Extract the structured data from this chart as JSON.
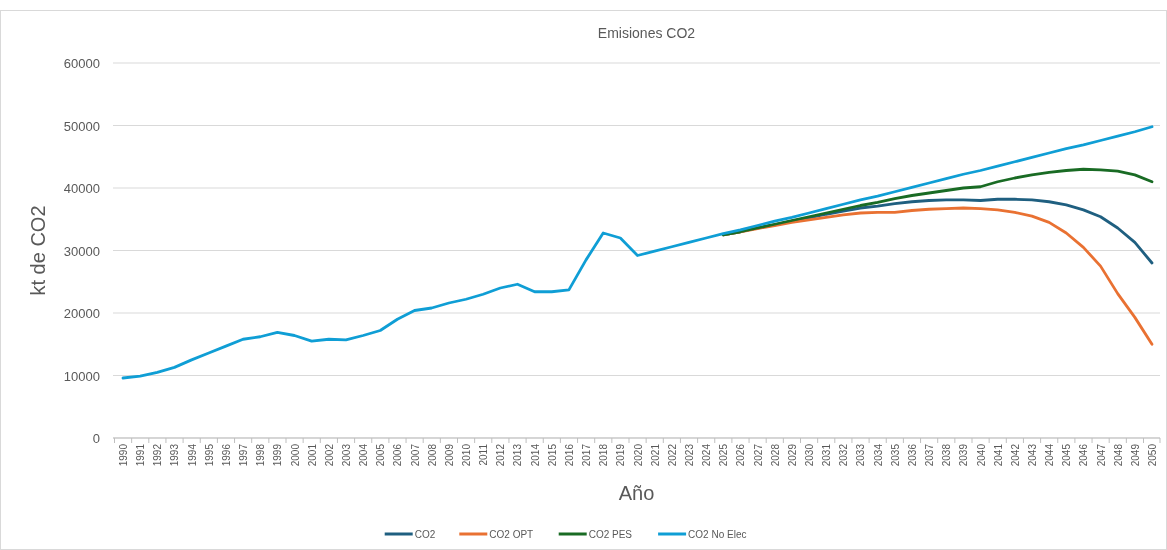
{
  "chart_data": {
    "type": "line",
    "title": "Emisiones CO2",
    "xlabel": "Año",
    "ylabel": "kt de CO2",
    "categories": [
      "1990",
      "1991",
      "1992",
      "1993",
      "1994",
      "1995",
      "1996",
      "1997",
      "1998",
      "1999",
      "2000",
      "2001",
      "2002",
      "2003",
      "2004",
      "2005",
      "2006",
      "2007",
      "2008",
      "2009",
      "2010",
      "2011",
      "2012",
      "2013",
      "2014",
      "2015",
      "2016",
      "2017",
      "2018",
      "2019",
      "2020",
      "2021",
      "2022",
      "2023",
      "2024",
      "2025",
      "2026",
      "2027",
      "2028",
      "2029",
      "2030",
      "2031",
      "2032",
      "2033",
      "2034",
      "2035",
      "2036",
      "2037",
      "2038",
      "2039",
      "2040",
      "2041",
      "2042",
      "2043",
      "2044",
      "2045",
      "2046",
      "2047",
      "2048",
      "2049",
      "2050"
    ],
    "series": [
      {
        "name": "CO2",
        "color": "#1f5f80",
        "values": [
          null,
          null,
          null,
          null,
          null,
          null,
          null,
          null,
          null,
          null,
          null,
          null,
          null,
          null,
          null,
          null,
          null,
          null,
          null,
          null,
          null,
          null,
          null,
          null,
          null,
          null,
          null,
          null,
          null,
          null,
          null,
          null,
          null,
          null,
          null,
          32500,
          33000,
          33600,
          34100,
          34700,
          35200,
          35800,
          36300,
          36800,
          37100,
          37500,
          37800,
          38000,
          38100,
          38100,
          38000,
          38200,
          38200,
          38100,
          37800,
          37300,
          36500,
          35400,
          33600,
          31300,
          28000
        ]
      },
      {
        "name": "CO2 OPT",
        "color": "#e97132",
        "values": [
          null,
          null,
          null,
          null,
          null,
          null,
          null,
          null,
          null,
          null,
          null,
          null,
          null,
          null,
          null,
          null,
          null,
          null,
          null,
          null,
          null,
          null,
          null,
          null,
          null,
          null,
          null,
          null,
          null,
          null,
          null,
          null,
          null,
          null,
          null,
          32500,
          33000,
          33500,
          34000,
          34500,
          34900,
          35300,
          35700,
          36000,
          36100,
          36100,
          36400,
          36600,
          36700,
          36800,
          36700,
          36500,
          36100,
          35500,
          34500,
          32800,
          30500,
          27500,
          23100,
          19300,
          15000
        ]
      },
      {
        "name": "CO2 PES",
        "color": "#196b24",
        "values": [
          null,
          null,
          null,
          null,
          null,
          null,
          null,
          null,
          null,
          null,
          null,
          null,
          null,
          null,
          null,
          null,
          null,
          null,
          null,
          null,
          null,
          null,
          null,
          null,
          null,
          null,
          null,
          null,
          null,
          null,
          null,
          null,
          null,
          null,
          null,
          32500,
          33000,
          33600,
          34200,
          34800,
          35400,
          36000,
          36600,
          37200,
          37700,
          38300,
          38800,
          39200,
          39600,
          40000,
          40200,
          41000,
          41600,
          42100,
          42500,
          42800,
          43000,
          42900,
          42700,
          42100,
          41000
        ]
      },
      {
        "name": "CO2 No Elec",
        "color": "#0f9ed5",
        "values": [
          9600,
          9900,
          10500,
          11300,
          12500,
          13600,
          14700,
          15800,
          16200,
          16900,
          16400,
          15500,
          15800,
          15700,
          16400,
          17200,
          19000,
          20400,
          20800,
          21600,
          22200,
          23000,
          24000,
          24600,
          23400,
          23400,
          23700,
          28500,
          32800,
          32000,
          29200,
          29900,
          30600,
          31300,
          32000,
          32700,
          33300,
          34000,
          34700,
          35300,
          36000,
          36700,
          37400,
          38100,
          38700,
          39400,
          40100,
          40800,
          41500,
          42200,
          42800,
          43500,
          44200,
          44900,
          45600,
          46300,
          46900,
          47600,
          48300,
          49000,
          49800
        ]
      }
    ],
    "ylim": [
      0,
      60000
    ],
    "yticks": [
      0,
      10000,
      20000,
      30000,
      40000,
      50000,
      60000
    ],
    "grid": "y",
    "legend": "bottom",
    "marker": "none",
    "line_style": "solid"
  }
}
